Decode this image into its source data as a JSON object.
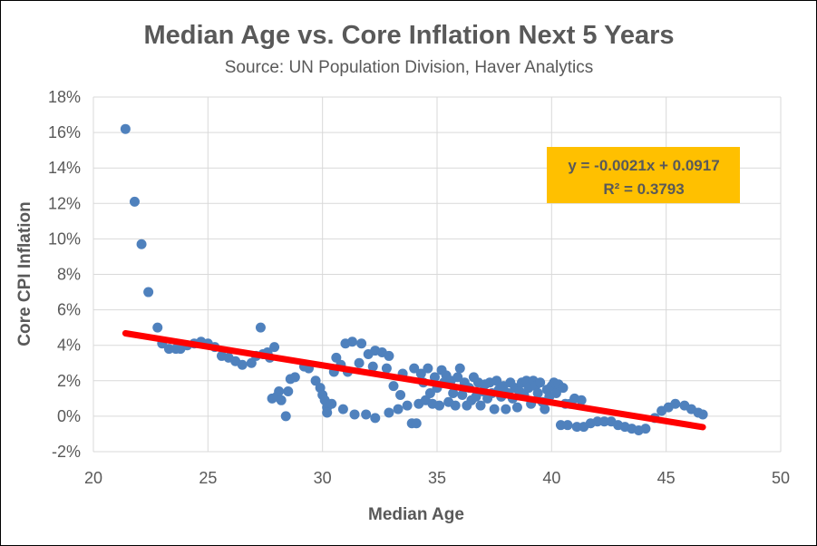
{
  "chart_data": {
    "type": "scatter",
    "title": "Median Age vs. Core Inflation Next 5 Years",
    "subtitle": "Source:  UN Population Division, Haver Analytics",
    "xlabel": "Median Age",
    "ylabel": "Core CPI Inflation",
    "xlim": [
      20,
      50
    ],
    "ylim": [
      -0.02,
      0.18
    ],
    "x_ticks": [
      20,
      25,
      30,
      35,
      40,
      45,
      50
    ],
    "x_tick_labels": [
      "20",
      "25",
      "30",
      "35",
      "40",
      "45",
      "50"
    ],
    "y_ticks": [
      -0.02,
      0,
      0.02,
      0.04,
      0.06,
      0.08,
      0.1,
      0.12,
      0.14,
      0.16,
      0.18
    ],
    "y_tick_labels": [
      "-2%",
      "0%",
      "2%",
      "4%",
      "6%",
      "8%",
      "10%",
      "12%",
      "14%",
      "16%",
      "18%"
    ],
    "grid": true,
    "colors": {
      "points": "#4f81bd",
      "trendline": "#ff0000",
      "equation_box": "#ffc000"
    },
    "trendline": {
      "slope": -0.0021,
      "intercept": 0.0917,
      "x_range": [
        21.4,
        46.6
      ],
      "equation_label": "y = -0.0021x + 0.0917",
      "r2_label": "R² = 0.3793"
    },
    "points": [
      [
        21.4,
        0.162
      ],
      [
        21.8,
        0.121
      ],
      [
        22.1,
        0.097
      ],
      [
        22.4,
        0.07
      ],
      [
        22.8,
        0.05
      ],
      [
        23.0,
        0.041
      ],
      [
        23.3,
        0.038
      ],
      [
        23.6,
        0.038
      ],
      [
        23.8,
        0.038
      ],
      [
        24.1,
        0.04
      ],
      [
        24.4,
        0.041
      ],
      [
        24.7,
        0.042
      ],
      [
        25.0,
        0.041
      ],
      [
        25.3,
        0.039
      ],
      [
        25.6,
        0.034
      ],
      [
        25.9,
        0.033
      ],
      [
        26.2,
        0.031
      ],
      [
        26.5,
        0.029
      ],
      [
        26.9,
        0.03
      ],
      [
        27.1,
        0.034
      ],
      [
        27.3,
        0.05
      ],
      [
        27.4,
        0.035
      ],
      [
        27.6,
        0.036
      ],
      [
        27.7,
        0.033
      ],
      [
        27.9,
        0.039
      ],
      [
        27.8,
        0.01
      ],
      [
        28.0,
        0.011
      ],
      [
        28.1,
        0.014
      ],
      [
        28.2,
        0.009
      ],
      [
        28.4,
        0.0
      ],
      [
        28.5,
        0.014
      ],
      [
        28.6,
        0.021
      ],
      [
        28.8,
        0.022
      ],
      [
        29.2,
        0.028
      ],
      [
        29.4,
        0.027
      ],
      [
        29.7,
        0.02
      ],
      [
        29.9,
        0.016
      ],
      [
        30.0,
        0.012
      ],
      [
        30.1,
        0.009
      ],
      [
        30.2,
        0.005
      ],
      [
        30.2,
        0.002
      ],
      [
        30.4,
        0.007
      ],
      [
        30.5,
        0.025
      ],
      [
        30.6,
        0.033
      ],
      [
        30.8,
        0.029
      ],
      [
        30.9,
        0.004
      ],
      [
        31.0,
        0.041
      ],
      [
        31.1,
        0.025
      ],
      [
        31.3,
        0.042
      ],
      [
        31.4,
        0.001
      ],
      [
        31.6,
        0.03
      ],
      [
        31.7,
        0.041
      ],
      [
        31.9,
        0.001
      ],
      [
        32.0,
        0.035
      ],
      [
        32.2,
        0.028
      ],
      [
        32.3,
        0.037
      ],
      [
        32.3,
        -0.001
      ],
      [
        32.6,
        0.036
      ],
      [
        32.8,
        0.027
      ],
      [
        32.9,
        0.002
      ],
      [
        32.9,
        0.034
      ],
      [
        33.1,
        0.017
      ],
      [
        33.3,
        0.004
      ],
      [
        33.4,
        0.012
      ],
      [
        33.5,
        0.024
      ],
      [
        33.7,
        0.006
      ],
      [
        33.9,
        -0.004
      ],
      [
        34.0,
        0.027
      ],
      [
        34.1,
        -0.004
      ],
      [
        34.2,
        0.007
      ],
      [
        34.3,
        0.024
      ],
      [
        34.4,
        0.019
      ],
      [
        34.5,
        0.009
      ],
      [
        34.6,
        0.027
      ],
      [
        34.7,
        0.013
      ],
      [
        34.8,
        0.007
      ],
      [
        34.9,
        0.022
      ],
      [
        35.0,
        0.016
      ],
      [
        35.1,
        0.006
      ],
      [
        35.2,
        0.026
      ],
      [
        35.3,
        0.019
      ],
      [
        35.4,
        0.023
      ],
      [
        35.5,
        0.008
      ],
      [
        35.6,
        0.02
      ],
      [
        35.7,
        0.013
      ],
      [
        35.8,
        0.006
      ],
      [
        35.9,
        0.022
      ],
      [
        36.0,
        0.027
      ],
      [
        36.1,
        0.012
      ],
      [
        36.2,
        0.019
      ],
      [
        36.3,
        0.006
      ],
      [
        36.4,
        0.016
      ],
      [
        36.5,
        0.009
      ],
      [
        36.6,
        0.022
      ],
      [
        36.7,
        0.011
      ],
      [
        36.8,
        0.019
      ],
      [
        36.9,
        0.006
      ],
      [
        37.0,
        0.014
      ],
      [
        37.1,
        0.018
      ],
      [
        37.2,
        0.01
      ],
      [
        37.3,
        0.019
      ],
      [
        37.4,
        0.013
      ],
      [
        37.5,
        0.004
      ],
      [
        37.6,
        0.02
      ],
      [
        37.7,
        0.015
      ],
      [
        37.8,
        0.011
      ],
      [
        37.9,
        0.017
      ],
      [
        38.0,
        0.004
      ],
      [
        38.1,
        0.013
      ],
      [
        38.2,
        0.019
      ],
      [
        38.3,
        0.01
      ],
      [
        38.4,
        0.016
      ],
      [
        38.5,
        0.005
      ],
      [
        38.6,
        0.014
      ],
      [
        38.7,
        0.019
      ],
      [
        38.8,
        0.012
      ],
      [
        38.9,
        0.02
      ],
      [
        39.0,
        0.016
      ],
      [
        39.1,
        0.007
      ],
      [
        39.2,
        0.02
      ],
      [
        39.3,
        0.017
      ],
      [
        39.4,
        0.013
      ],
      [
        39.5,
        0.019
      ],
      [
        39.6,
        0.008
      ],
      [
        39.7,
        0.004
      ],
      [
        39.8,
        0.015
      ],
      [
        39.9,
        0.011
      ],
      [
        40.0,
        0.017
      ],
      [
        40.1,
        0.019
      ],
      [
        40.2,
        0.013
      ],
      [
        40.3,
        0.018
      ],
      [
        40.4,
        -0.005
      ],
      [
        40.5,
        0.016
      ],
      [
        40.6,
        0.007
      ],
      [
        40.7,
        -0.005
      ],
      [
        40.8,
        0.007
      ],
      [
        41.0,
        0.01
      ],
      [
        41.1,
        -0.006
      ],
      [
        41.3,
        0.009
      ],
      [
        41.4,
        -0.006
      ],
      [
        41.7,
        -0.004
      ],
      [
        42.0,
        -0.003
      ],
      [
        42.3,
        -0.003
      ],
      [
        42.6,
        -0.003
      ],
      [
        42.9,
        -0.005
      ],
      [
        43.2,
        -0.006
      ],
      [
        43.5,
        -0.007
      ],
      [
        43.8,
        -0.008
      ],
      [
        44.1,
        -0.007
      ],
      [
        44.5,
        -0.001
      ],
      [
        44.8,
        0.003
      ],
      [
        45.1,
        0.005
      ],
      [
        45.4,
        0.007
      ],
      [
        45.8,
        0.006
      ],
      [
        46.1,
        0.004
      ],
      [
        46.4,
        0.002
      ],
      [
        46.6,
        0.001
      ]
    ]
  }
}
